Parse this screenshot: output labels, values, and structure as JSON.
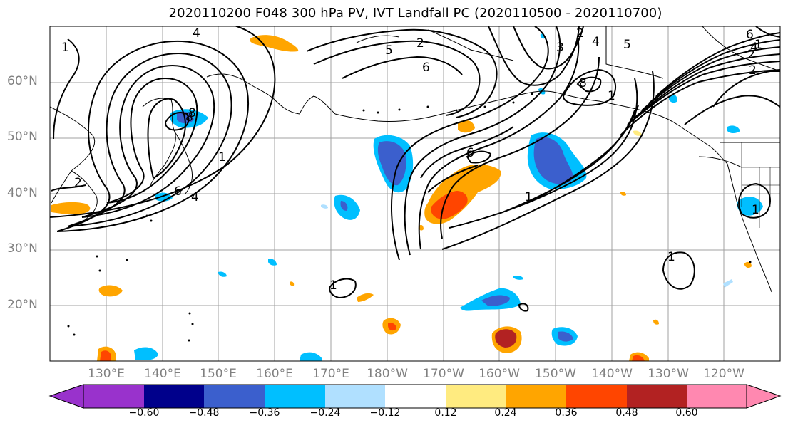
{
  "title": "2020110200 F048 300 hPa PV, IVT Landfall PC (2020110500 - 2020110700)",
  "lat_labels": [
    "60°N",
    "50°N",
    "40°N",
    "30°N",
    "20°N"
  ],
  "lon_labels": [
    "130°E",
    "140°E",
    "150°E",
    "160°E",
    "170°E",
    "180°W",
    "170°W",
    "160°W",
    "150°W",
    "140°W",
    "130°W",
    "120°W"
  ],
  "colorbar": {
    "colors": [
      "#9932cc",
      "#00008b",
      "#3b5fcd",
      "#00bfff",
      "#b0e0ff",
      "#ffffff",
      "#ffeb80",
      "#ffa500",
      "#ff4500",
      "#b22222",
      "#ff88b0"
    ],
    "ticks": [
      "−0.60",
      "−0.48",
      "−0.36",
      "−0.24",
      "−0.12",
      "0.12",
      "0.24",
      "0.36",
      "0.48",
      "0.60"
    ]
  },
  "contour_labels": [
    "4",
    "1",
    "2",
    "6",
    "8",
    "1",
    "4",
    "5",
    "2",
    "6",
    "2",
    "3",
    "5",
    "4",
    "2",
    "8",
    "1",
    "6",
    "1",
    "2",
    "1",
    "8",
    "1",
    "6",
    "4",
    "1",
    "1"
  ]
}
